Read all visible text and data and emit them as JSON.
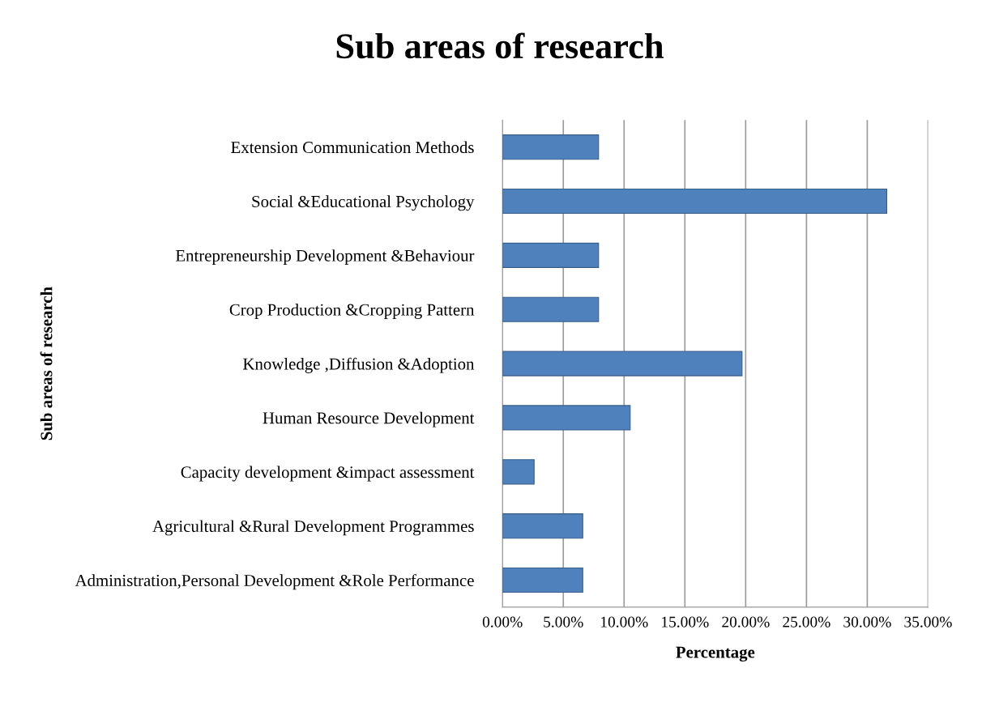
{
  "chart_data": {
    "type": "bar",
    "orientation": "horizontal",
    "title": "Sub areas of research",
    "xlabel": "Percentage",
    "ylabel": "Sub areas of research",
    "categories": [
      "Extension Communication Methods",
      "Social &Educational Psychology",
      "Entrepreneurship Development &Behaviour",
      "Crop Production &Cropping Pattern",
      "Knowledge ,Diffusion &Adoption",
      "Human Resource Development",
      "Capacity development &impact assessment",
      "Agricultural &Rural Development Programmes",
      "Administration,Personal Development &Role Performance"
    ],
    "values": [
      7.9,
      31.6,
      7.9,
      7.9,
      19.7,
      10.5,
      2.6,
      6.6,
      6.6
    ],
    "color": "#4f81bd",
    "xlim": [
      0,
      35
    ],
    "xticks": [
      {
        "value": 0,
        "label": "0.00%"
      },
      {
        "value": 5,
        "label": "5.00%"
      },
      {
        "value": 10,
        "label": "10.00%"
      },
      {
        "value": 15,
        "label": "15.00%"
      },
      {
        "value": 20,
        "label": "20.00%"
      },
      {
        "value": 25,
        "label": "25.00%"
      },
      {
        "value": 30,
        "label": "30.00%"
      },
      {
        "value": 35,
        "label": "35.00%"
      }
    ],
    "grid": "x",
    "legend": false
  }
}
